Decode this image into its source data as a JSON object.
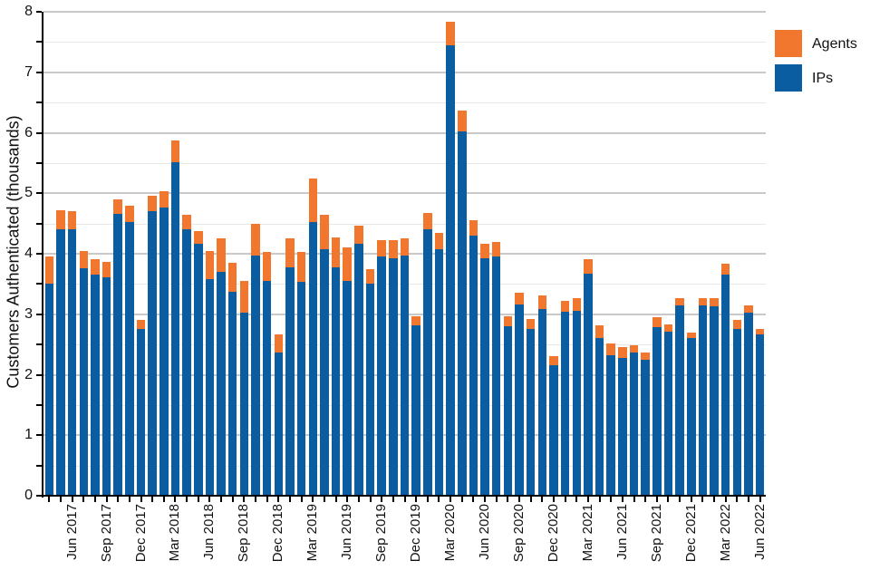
{
  "y_axis": {
    "title": "Customers Authenticated (thousands)",
    "tick_labels": [
      "0",
      "1",
      "2",
      "3",
      "4",
      "5",
      "6",
      "7",
      "8"
    ]
  },
  "legend": {
    "items": [
      {
        "label": "Agents",
        "color": "#f2772e"
      },
      {
        "label": "IPs",
        "color": "#0b5da1"
      }
    ],
    "position": "top-right"
  },
  "chart_data": {
    "type": "bar",
    "stacked": true,
    "title": "",
    "xlabel": "",
    "ylabel": "Customers Authenticated (thousands)",
    "ylim": [
      0,
      8
    ],
    "y_major_step": 1,
    "y_minor_step": 0.5,
    "grid": "horizontal",
    "x_label_every": 3,
    "x_label_first_index": 2,
    "categories": [
      "Apr 2017",
      "May 2017",
      "Jun 2017",
      "Jul 2017",
      "Aug 2017",
      "Sep 2017",
      "Oct 2017",
      "Nov 2017",
      "Dec 2017",
      "Jan 2018",
      "Feb 2018",
      "Mar 2018",
      "Apr 2018",
      "May 2018",
      "Jun 2018",
      "Jul 2018",
      "Aug 2018",
      "Sep 2018",
      "Oct 2018",
      "Nov 2018",
      "Dec 2018",
      "Jan 2019",
      "Feb 2019",
      "Mar 2019",
      "Apr 2019",
      "May 2019",
      "Jun 2019",
      "Jul 2019",
      "Aug 2019",
      "Sep 2019",
      "Oct 2019",
      "Nov 2019",
      "Dec 2019",
      "Jan 2020",
      "Feb 2020",
      "Mar 2020",
      "Apr 2020",
      "May 2020",
      "Jun 2020",
      "Jul 2020",
      "Aug 2020",
      "Sep 2020",
      "Oct 2020",
      "Nov 2020",
      "Dec 2020",
      "Jan 2021",
      "Feb 2021",
      "Mar 2021",
      "Apr 2021",
      "May 2021",
      "Jun 2021",
      "Jul 2021",
      "Aug 2021",
      "Sep 2021",
      "Oct 2021",
      "Nov 2021",
      "Dec 2021",
      "Jan 2022",
      "Feb 2022",
      "Mar 2022",
      "Apr 2022",
      "May 2022",
      "Jun 2022"
    ],
    "series": [
      {
        "name": "IPs",
        "color": "#0b5da1",
        "values": [
          3.5,
          4.4,
          4.4,
          3.76,
          3.66,
          3.61,
          4.66,
          4.53,
          2.76,
          4.71,
          4.77,
          5.51,
          4.41,
          4.16,
          3.58,
          3.7,
          3.37,
          3.02,
          3.97,
          3.55,
          2.36,
          3.77,
          3.54,
          4.53,
          4.07,
          3.78,
          3.55,
          4.17,
          3.51,
          3.95,
          3.93,
          3.97,
          2.81,
          4.41,
          4.07,
          7.45,
          6.02,
          4.3,
          3.92,
          3.96,
          2.8,
          3.16,
          2.76,
          3.08,
          2.16,
          3.04,
          3.05,
          3.67,
          2.6,
          2.32,
          2.28,
          2.37,
          2.24,
          2.78,
          2.71,
          3.15,
          2.6,
          3.14,
          3.13,
          3.66,
          2.76,
          3.02,
          2.66
        ]
      },
      {
        "name": "Agents",
        "color": "#f2772e",
        "values": [
          0.46,
          0.32,
          0.31,
          0.29,
          0.25,
          0.25,
          0.24,
          0.26,
          0.15,
          0.25,
          0.26,
          0.36,
          0.24,
          0.22,
          0.46,
          0.56,
          0.48,
          0.53,
          0.53,
          0.48,
          0.31,
          0.49,
          0.49,
          0.72,
          0.58,
          0.49,
          0.55,
          0.3,
          0.24,
          0.27,
          0.29,
          0.28,
          0.16,
          0.26,
          0.28,
          0.39,
          0.34,
          0.25,
          0.25,
          0.24,
          0.16,
          0.19,
          0.16,
          0.23,
          0.15,
          0.18,
          0.21,
          0.24,
          0.21,
          0.19,
          0.17,
          0.11,
          0.13,
          0.17,
          0.12,
          0.11,
          0.1,
          0.12,
          0.13,
          0.18,
          0.14,
          0.13,
          0.1
        ]
      }
    ]
  }
}
